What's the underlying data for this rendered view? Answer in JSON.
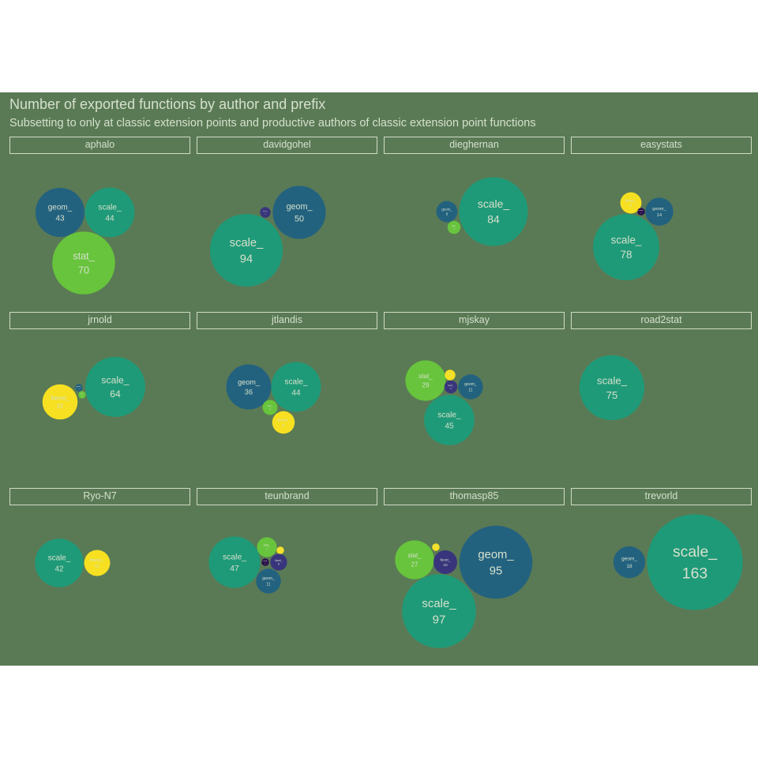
{
  "chart_data": {
    "type": "packed-bubble",
    "title": "Number of exported functions by author and prefix",
    "subtitle": "Subsetting to only at classic extension points and productive authors of classic extension point functions",
    "colors": {
      "background": "#5a7a55",
      "text": "#d5e0cc",
      "geom_": "#23627f",
      "scale_": "#1f9a78",
      "stat_": "#67c43c",
      "theme_": "#f6e021",
      "facet_": "#39357c",
      "coord_": "#2a0f4a"
    },
    "facets": [
      {
        "author": "aphalo",
        "bubbles": [
          {
            "prefix": "geom_",
            "count": 43
          },
          {
            "prefix": "scale_",
            "count": 44
          },
          {
            "prefix": "stat_",
            "count": 70
          }
        ]
      },
      {
        "author": "davidgohel",
        "bubbles": [
          {
            "prefix": "facet_",
            "count": 2
          },
          {
            "prefix": "geom_",
            "count": 50
          },
          {
            "prefix": "scale_",
            "count": 94
          }
        ]
      },
      {
        "author": "dieghernan",
        "bubbles": [
          {
            "prefix": "geom_",
            "count": 8
          },
          {
            "prefix": "scale_",
            "count": 84
          },
          {
            "prefix": "stat_",
            "count": 3
          }
        ]
      },
      {
        "author": "easystats",
        "bubbles": [
          {
            "prefix": "theme_",
            "count": 8
          },
          {
            "prefix": "coord_",
            "count": 1
          },
          {
            "prefix": "geom_",
            "count": 14
          },
          {
            "prefix": "scale_",
            "count": 78
          }
        ]
      },
      {
        "author": "jrnold",
        "bubbles": [
          {
            "prefix": "scale_",
            "count": 64
          },
          {
            "prefix": "geom_",
            "count": 1
          },
          {
            "prefix": "stat_",
            "count": 1
          },
          {
            "prefix": "theme_",
            "count": 22
          }
        ]
      },
      {
        "author": "jtlandis",
        "bubbles": [
          {
            "prefix": "geom_",
            "count": 36
          },
          {
            "prefix": "scale_",
            "count": 44
          },
          {
            "prefix": "stat_",
            "count": 4
          },
          {
            "prefix": "theme_",
            "count": 9
          }
        ]
      },
      {
        "author": "mjskay",
        "bubbles": [
          {
            "prefix": "stat_",
            "count": 29
          },
          {
            "prefix": "theme_",
            "count": 2
          },
          {
            "prefix": "facet_",
            "count": 3
          },
          {
            "prefix": "geom_",
            "count": 11
          },
          {
            "prefix": "scale_",
            "count": 45
          }
        ]
      },
      {
        "author": "road2stat",
        "bubbles": [
          {
            "prefix": "scale_",
            "count": 75
          }
        ]
      },
      {
        "author": "Ryo-N7",
        "bubbles": [
          {
            "prefix": "scale_",
            "count": 42
          },
          {
            "prefix": "theme_",
            "count": 12
          }
        ]
      },
      {
        "author": "teunbrand",
        "bubbles": [
          {
            "prefix": "scale_",
            "count": 47
          },
          {
            "prefix": "stat_",
            "count": 7
          },
          {
            "prefix": "theme_",
            "count": 1
          },
          {
            "prefix": "coord_",
            "count": 1
          },
          {
            "prefix": "facet_",
            "count": 5
          },
          {
            "prefix": "geom_",
            "count": 11
          }
        ]
      },
      {
        "author": "thomasp85",
        "bubbles": [
          {
            "prefix": "stat_",
            "count": 27
          },
          {
            "prefix": "theme_",
            "count": 1
          },
          {
            "prefix": "facet_",
            "count": 10
          },
          {
            "prefix": "geom_",
            "count": 95
          },
          {
            "prefix": "scale_",
            "count": 97
          }
        ]
      },
      {
        "author": "trevorld",
        "bubbles": [
          {
            "prefix": "geom_",
            "count": 18
          },
          {
            "prefix": "scale_",
            "count": 163
          }
        ]
      }
    ]
  }
}
